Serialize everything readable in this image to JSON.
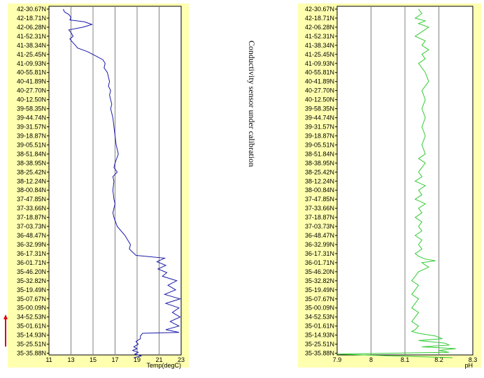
{
  "annotation": "Conductivity sensor under calibration",
  "colors": {
    "panel_bg": "#ffffb0",
    "plot_bg": "#ffffff",
    "grid": "#808080",
    "temp_line": "#1a1aa8",
    "ph_line": "#33cc33",
    "arrow": "#dd0000"
  },
  "icons": {
    "direction_arrow": "red-up-arrow"
  },
  "chart_data": [
    {
      "type": "line",
      "title": "",
      "xlabel": "Temp(degC)",
      "ylabel": "",
      "xlim": [
        11,
        23
      ],
      "grid": true,
      "orientation": "vertical-profile",
      "xticks": [
        "11",
        "13",
        "15",
        "17",
        "19",
        "21",
        "23"
      ],
      "ytick_labels": [
        "42-30.67N",
        "42-18.71N",
        "42-06.28N",
        "41-52.31N",
        "41-38.34N",
        "41-25.45N",
        "41-09.93N",
        "40-55.81N",
        "40-41.89N",
        "40-27.70N",
        "40-12.50N",
        "39-58.35N",
        "39-44.74N",
        "39-31.57N",
        "39-18.87N",
        "39-05.51N",
        "38-51.84N",
        "38-38.95N",
        "38-25.42N",
        "38-12.24N",
        "38-00.84N",
        "37-47.85N",
        "37-33.66N",
        "37-18.87N",
        "37-03.73N",
        "36-48.47N",
        "36-32.99N",
        "36-17.31N",
        "36-01.71N",
        "35-46.20N",
        "35-32.82N",
        "35-19.49N",
        "35-07.67N",
        "35-00.09N",
        "34-52.53N",
        "35-01.61N",
        "35-14.93N",
        "35-25.51N",
        "35-35.88N"
      ],
      "series": [
        {
          "values": [
            12.3,
            12.4,
            12.8,
            13.0,
            12.9,
            14.2,
            14.9,
            14.1,
            12.8,
            13.0,
            13.2,
            12.9,
            13.1,
            13.4,
            13.6,
            14.5,
            15.3,
            15.9,
            16.1,
            16.0,
            16.3,
            16.4,
            16.5,
            16.4,
            16.6,
            16.5,
            16.6,
            16.7,
            16.6,
            16.8,
            16.9,
            17.0,
            17.1,
            17.3,
            17.0,
            16.9,
            17.2,
            16.8,
            16.9,
            16.8,
            16.9,
            17.0,
            16.9,
            16.8,
            16.9,
            17.2,
            17.9,
            18.4,
            18.3,
            18.9,
            21.5,
            20.8,
            21.6,
            20.9,
            21.7,
            21.3,
            22.6,
            21.8,
            22.5,
            21.5,
            22.9,
            21.6,
            22.8,
            22.2,
            22.9,
            22.0,
            22.8,
            21.6,
            22.8,
            19.5,
            19.3,
            19.3,
            18.9,
            19.1,
            18.7,
            19.0,
            18.6,
            19.1,
            18.8,
            19.4,
            18.7
          ],
          "y_index": [
            0.0,
            0.3,
            0.6,
            0.9,
            1.2,
            1.4,
            1.7,
            2.0,
            2.3,
            2.6,
            3.0,
            3.3,
            3.6,
            4.0,
            4.3,
            4.7,
            5.2,
            5.6,
            6.0,
            6.5,
            7.0,
            7.5,
            8.0,
            8.5,
            9.0,
            9.5,
            10.0,
            10.5,
            11.0,
            12.0,
            13.0,
            14.0,
            15.0,
            16.0,
            17.0,
            17.5,
            18.0,
            18.5,
            19.0,
            20.0,
            21.0,
            21.5,
            22.0,
            22.5,
            23.0,
            24.0,
            25.0,
            26.0,
            26.5,
            27.2,
            27.5,
            27.9,
            28.3,
            28.7,
            29.1,
            29.5,
            30.0,
            30.5,
            31.0,
            31.5,
            32.0,
            32.5,
            33.0,
            33.5,
            34.0,
            34.5,
            35.0,
            35.4,
            35.7,
            35.8,
            36.1,
            36.4,
            36.7,
            37.0,
            37.3,
            37.5,
            37.7,
            37.9,
            38.1,
            38.3,
            38.5
          ]
        }
      ]
    },
    {
      "type": "line",
      "title": "",
      "xlabel": "pH",
      "ylabel": "",
      "xlim": [
        7.9,
        8.3
      ],
      "grid": true,
      "orientation": "vertical-profile",
      "xticks": [
        "7.9",
        "8",
        "8.1",
        "8.2",
        "8.3"
      ],
      "ytick_labels": [
        "42-30.67N",
        "42-18.71N",
        "42-06.28N",
        "41-52.31N",
        "41-38.34N",
        "41-25.45N",
        "41-09.93N",
        "40-55.81N",
        "40-41.89N",
        "40-27.70N",
        "40-12.50N",
        "39-58.35N",
        "39-44.74N",
        "39-31.57N",
        "39-18.87N",
        "39-05.51N",
        "38-51.84N",
        "38-38.95N",
        "38-25.42N",
        "38-12.24N",
        "38-00.84N",
        "37-47.85N",
        "37-33.66N",
        "37-18.87N",
        "37-03.73N",
        "36-48.47N",
        "36-32.99N",
        "36-17.31N",
        "36-01.71N",
        "35-46.20N",
        "35-32.82N",
        "35-19.49N",
        "35-07.67N",
        "35-00.09N",
        "34-52.53N",
        "35-01.61N",
        "35-14.93N",
        "35-25.51N",
        "35-35.88N"
      ],
      "series": [
        {
          "values": [
            8.14,
            8.15,
            8.13,
            8.16,
            8.14,
            8.17,
            8.15,
            8.13,
            8.16,
            8.15,
            8.17,
            8.15,
            8.16,
            8.14,
            8.16,
            8.17,
            8.15,
            8.16,
            8.15,
            8.16,
            8.15,
            8.16,
            8.15,
            8.16,
            8.14,
            8.16,
            8.15,
            8.14,
            8.15,
            8.13,
            8.16,
            8.14,
            8.15,
            8.13,
            8.16,
            8.14,
            8.15,
            8.13,
            8.15,
            8.14,
            8.15,
            8.13,
            8.15,
            8.14,
            8.15,
            8.13,
            8.14,
            8.16,
            8.19,
            8.15,
            8.17,
            8.14,
            8.13,
            8.12,
            8.14,
            8.13,
            8.12,
            8.14,
            8.13,
            8.12,
            8.14,
            8.13,
            8.12,
            8.14,
            8.13,
            8.12,
            8.14,
            8.19,
            8.21,
            8.14,
            8.22,
            8.23,
            8.15,
            8.25,
            8.2,
            8.23,
            7.9,
            8.24
          ],
          "y_index": [
            0.0,
            0.5,
            1.0,
            1.3,
            1.6,
            2.0,
            2.5,
            3.0,
            3.5,
            4.0,
            4.5,
            5.0,
            5.5,
            6.0,
            7.0,
            8.0,
            9.0,
            10.0,
            11.0,
            12.0,
            13.0,
            14.0,
            15.0,
            16.0,
            16.5,
            17.0,
            17.5,
            18.0,
            18.5,
            19.0,
            19.5,
            20.0,
            20.5,
            21.0,
            21.5,
            22.0,
            22.5,
            23.0,
            23.5,
            24.0,
            24.5,
            25.0,
            25.5,
            26.0,
            26.5,
            27.0,
            27.3,
            27.6,
            27.8,
            28.0,
            28.5,
            29.0,
            29.5,
            30.0,
            30.5,
            31.0,
            31.5,
            32.0,
            32.5,
            33.0,
            33.5,
            34.0,
            34.5,
            35.0,
            35.4,
            35.6,
            35.8,
            36.1,
            36.4,
            36.6,
            36.9,
            37.1,
            37.3,
            37.5,
            37.7,
            37.9,
            38.1,
            38.5
          ]
        }
      ]
    }
  ]
}
